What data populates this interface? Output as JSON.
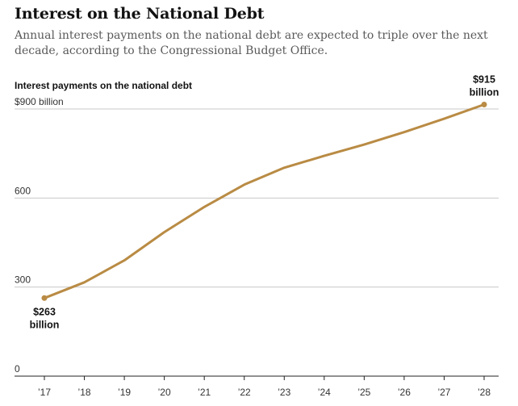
{
  "header": {
    "title": "Interest on the National Debt",
    "subtitle": "Annual interest payments on the national debt are expected to triple over the next decade, according to the Congressional Budget Office."
  },
  "chart_data": {
    "type": "line",
    "title": "Interest on the National Debt",
    "subtitle": "Annual interest payments on the national debt are expected to triple over the next decade, according to the Congressional Budget Office.",
    "ylabel": "Interest payments on the national debt",
    "xlabel": "",
    "categories": [
      "’17",
      "’18",
      "’19",
      "’20",
      "’21",
      "’22",
      "’23",
      "’24",
      "’25",
      "’26",
      "’27",
      "’28"
    ],
    "yticks": [
      {
        "value": 0,
        "label": "0"
      },
      {
        "value": 300,
        "label": "300"
      },
      {
        "value": 600,
        "label": "600"
      },
      {
        "value": 900,
        "label": "$900 billion"
      }
    ],
    "ylim": [
      0,
      900
    ],
    "grid": true,
    "series": [
      {
        "values": [
          263,
          316,
          390,
          485,
          570,
          645,
          702,
          742,
          780,
          822,
          867,
          915
        ],
        "color": "#b98b44"
      }
    ],
    "annotations": [
      {
        "index": 0,
        "lines": [
          "$263",
          "billion"
        ]
      },
      {
        "index": 11,
        "lines": [
          "$915",
          "billion"
        ]
      }
    ]
  }
}
